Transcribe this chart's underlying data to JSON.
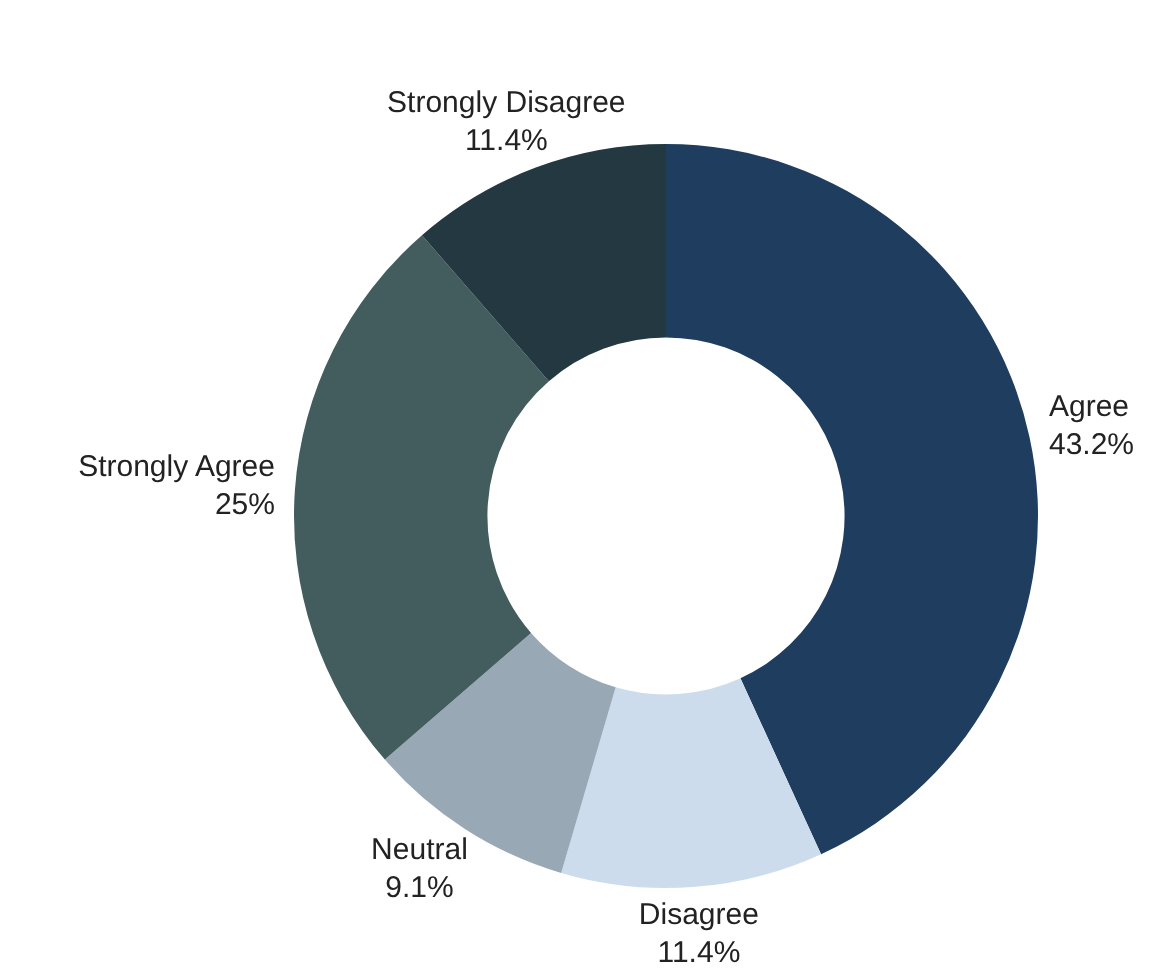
{
  "chart_data": {
    "type": "donut",
    "categories": [
      "Agree",
      "Disagree",
      "Neutral",
      "Strongly Agree",
      "Strongly Disagree"
    ],
    "values": [
      43.2,
      11.4,
      9.1,
      25,
      11.4
    ],
    "value_labels": [
      "43.2%",
      "11.4%",
      "9.1%",
      "25%",
      "11.4%"
    ],
    "colors": [
      "#1f3d5e",
      "#cddced",
      "#98a8b5",
      "#435d5e",
      "#233840"
    ],
    "legend": false
  }
}
